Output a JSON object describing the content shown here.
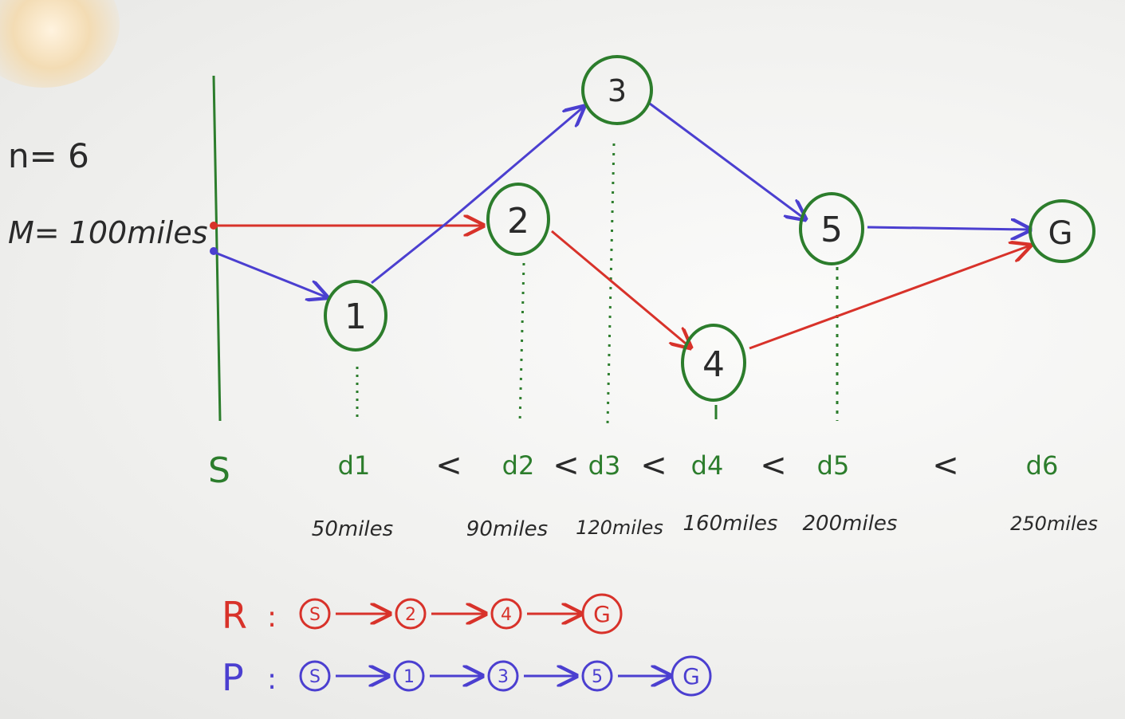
{
  "params": {
    "n": "n= 6",
    "M": "M= 100miles"
  },
  "start_label": "S",
  "nodes": [
    {
      "id": "1",
      "label": "1"
    },
    {
      "id": "2",
      "label": "2"
    },
    {
      "id": "3",
      "label": "3"
    },
    {
      "id": "4",
      "label": "4"
    },
    {
      "id": "5",
      "label": "5"
    },
    {
      "id": "G",
      "label": "G"
    }
  ],
  "distance_axis": {
    "labels": [
      "d1",
      "d2",
      "d3",
      "d4",
      "d5",
      "d6"
    ],
    "separator": "<",
    "distances": [
      "50miles",
      "90miles",
      "120miles",
      "160miles",
      "200miles",
      "250miles"
    ]
  },
  "routes": [
    {
      "name": "R",
      "sep": ":",
      "steps": [
        "S",
        "2",
        "4",
        "G"
      ],
      "color": "#d8322a"
    },
    {
      "name": "P",
      "sep": ":",
      "steps": [
        "S",
        "1",
        "3",
        "5",
        "G"
      ],
      "color": "#4b3fd0"
    }
  ],
  "colors": {
    "node": "#2c7d2c",
    "red_path": "#d8322a",
    "blue_path": "#4b3fd0",
    "ink": "#2c7d2c",
    "labels": "#2a2a2a"
  }
}
